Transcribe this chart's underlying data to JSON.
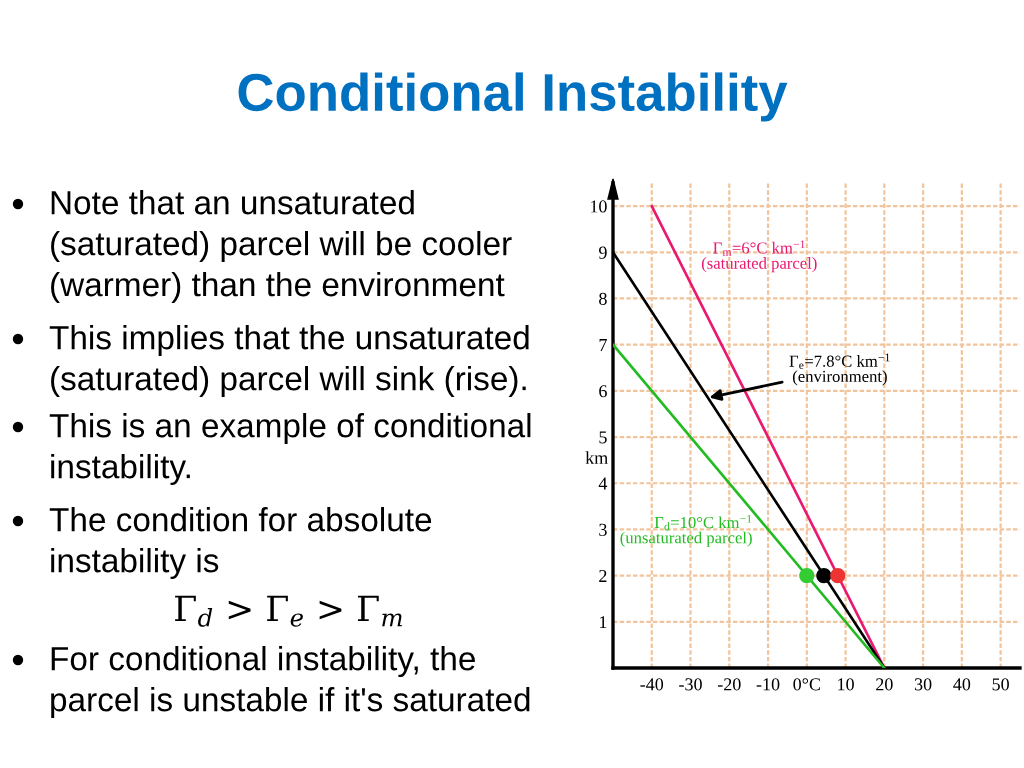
{
  "chart_data": {
    "type": "line",
    "title": "Conditional Instability",
    "ylabel": "km",
    "xlim": [
      -50,
      55
    ],
    "ylim": [
      0,
      10.5
    ],
    "xticks": [
      -40,
      -30,
      -20,
      -10,
      {
        "value": 0,
        "label": "0°C"
      },
      10,
      20,
      30,
      40,
      50
    ],
    "yticks": [
      1,
      2,
      3,
      4,
      5,
      6,
      7,
      8,
      9,
      10
    ],
    "grid": true,
    "series": [
      {
        "name": "Γ$_{m}$=6°C km$^{−1}$\n(saturated parcel)",
        "color": "#e8196f",
        "x": [
          -40,
          20
        ],
        "values": [
          10,
          0
        ]
      },
      {
        "name": "Γ$_{e}$=7.8°C km$^{−1}$\n(environment)",
        "color": "#000000",
        "x": [
          -50,
          20
        ],
        "values": [
          9,
          0
        ]
      },
      {
        "name": "Γ$_{d}$=10°C km$^{−1}$\n(unsaturated parcel)",
        "color": "#22bb22",
        "x": [
          -50,
          20
        ],
        "values": [
          7,
          0
        ]
      },
      {
        "type": "scatter",
        "x": [
          0,
          4.4,
          8
        ],
        "values": [
          2,
          2,
          2
        ],
        "colors": [
          "#33cc33",
          "#000000",
          "#ee3333"
        ]
      }
    ],
    "annotations": [
      "Note that an unsaturated\n(saturated) parcel will be cooler\n(warmer) than the environment",
      "This implies that the unsaturated\n(saturated) parcel will sink (rise).",
      "This is an example of conditional\ninstability.",
      "The condition for absolute\ninstability is",
      "Γ$_{d}$ > Γ$_{e}$ > Γ$_{m}$",
      "For conditional instability, the\nparcel is unstable if it's saturated"
    ]
  }
}
